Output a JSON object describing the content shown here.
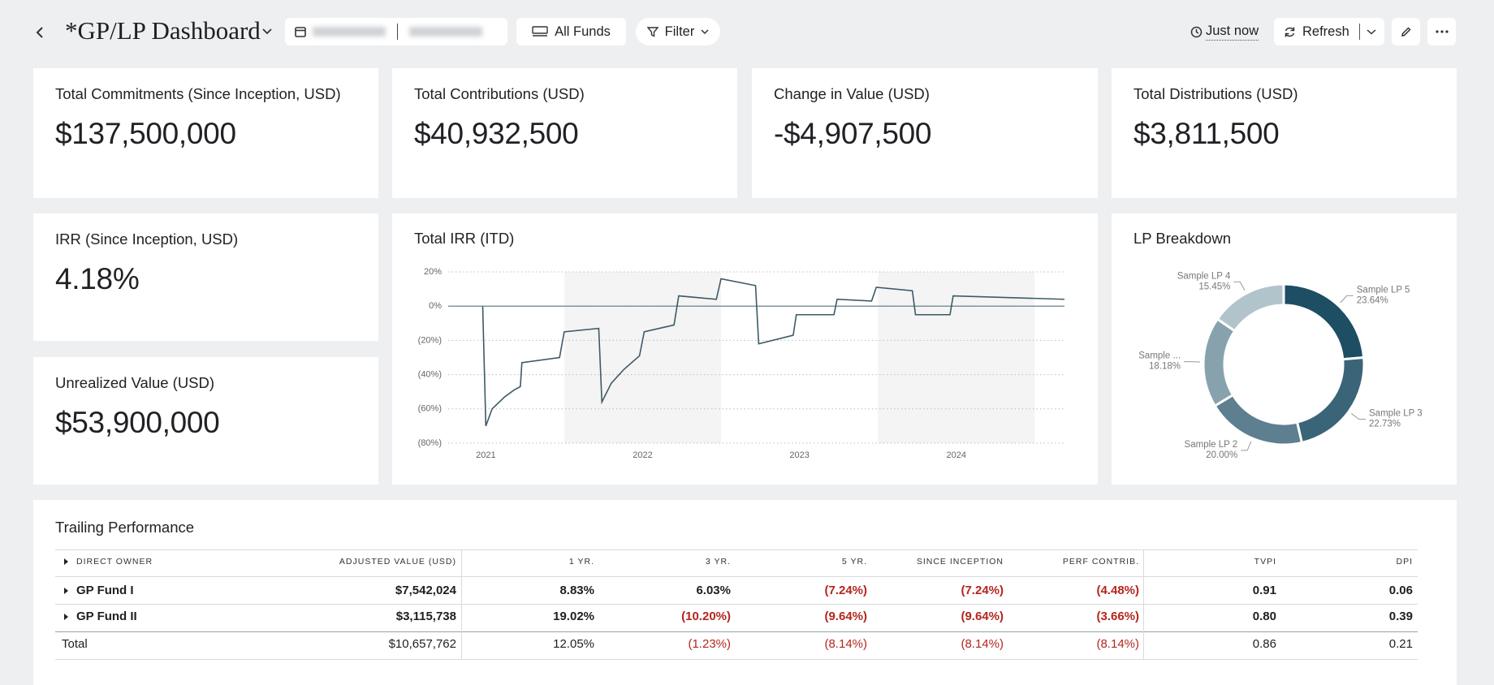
{
  "header": {
    "title": "*GP/LP Dashboard",
    "funds": "All Funds",
    "filter": "Filter",
    "updated": "Just now",
    "refresh": "Refresh"
  },
  "kpis": [
    {
      "label": "Total Commitments (Since Inception, USD)",
      "value": "$137,500,000"
    },
    {
      "label": "Total Contributions (USD)",
      "value": "$40,932,500"
    },
    {
      "label": "Change in Value (USD)",
      "value": "-$4,907,500"
    },
    {
      "label": "Total Distributions (USD)",
      "value": "$3,811,500"
    },
    {
      "label": "IRR (Since Inception, USD)",
      "value": "4.18%"
    },
    {
      "label": "Unrealized Value (USD)",
      "value": "$53,900,000"
    }
  ],
  "chart_data": [
    {
      "type": "line",
      "title": "Total IRR (ITD)",
      "x": [
        2020.98,
        2021.0,
        2021.04,
        2021.12,
        2021.18,
        2021.22,
        2021.23,
        2021.47,
        2021.5,
        2021.72,
        2021.74,
        2021.8,
        2021.88,
        2021.98,
        2022.01,
        2022.2,
        2022.23,
        2022.47,
        2022.5,
        2022.72,
        2022.74,
        2022.96,
        2022.98,
        2023.22,
        2023.24,
        2023.46,
        2023.49,
        2023.72,
        2023.74,
        2023.96,
        2023.98,
        2024.69
      ],
      "series": [
        {
          "color": "#3d5a66",
          "values": [
            0,
            -70,
            -60,
            -53,
            -49,
            -47,
            -33,
            -30,
            -15,
            -13,
            -56,
            -45,
            -37,
            -29,
            -15,
            -11,
            6,
            4,
            16,
            12,
            -22,
            -17,
            -5,
            -5,
            4,
            3,
            11,
            9,
            -5,
            -5,
            6,
            4
          ]
        }
      ],
      "xlim": [
        2020.76,
        2024.69
      ],
      "xticks": [
        2021,
        2022,
        2023,
        2024
      ],
      "ylim": [
        -80,
        20
      ],
      "yticks": [
        {
          "value": 20,
          "label": "20%"
        },
        {
          "value": 0,
          "label": "0%"
        },
        {
          "value": -20,
          "label": "(20%)"
        },
        {
          "value": -40,
          "label": "(40%)"
        },
        {
          "value": -60,
          "label": "(60%)"
        },
        {
          "value": -80,
          "label": "(80%)"
        }
      ],
      "grid": true
    },
    {
      "type": "pie",
      "title": "LP Breakdown",
      "categories": [
        "Sample LP 5",
        "Sample LP 3",
        "Sample LP 2",
        "Sample ...",
        "Sample LP 4"
      ],
      "values": [
        23.64,
        22.73,
        20.0,
        18.18,
        15.45
      ],
      "value_labels": [
        "23.64%",
        "22.73%",
        "20.00%",
        "18.18%",
        "15.45%"
      ],
      "colors": [
        "#1d4e63",
        "#3a6478",
        "#5d7f8f",
        "#87a2ad",
        "#b2c4cb"
      ]
    }
  ],
  "table": {
    "title": "Trailing Performance",
    "columns": [
      "DIRECT OWNER",
      "ADJUSTED VALUE (USD)",
      "1 YR.",
      "3 YR.",
      "5 YR.",
      "SINCE INCEPTION",
      "PERF CONTRIB.",
      "TVPI",
      "DPI"
    ],
    "rows": [
      [
        "GP Fund I",
        "$7,542,024",
        "8.83%",
        "6.03%",
        "(7.24%)",
        "(7.24%)",
        "(4.48%)",
        "0.91",
        "0.06"
      ],
      [
        "GP Fund II",
        "$3,115,738",
        "19.02%",
        "(10.20%)",
        "(9.64%)",
        "(9.64%)",
        "(3.66%)",
        "0.80",
        "0.39"
      ]
    ],
    "total": [
      "Total",
      "$10,657,762",
      "12.05%",
      "(1.23%)",
      "(8.14%)",
      "(8.14%)",
      "(8.14%)",
      "0.86",
      "0.21"
    ]
  }
}
